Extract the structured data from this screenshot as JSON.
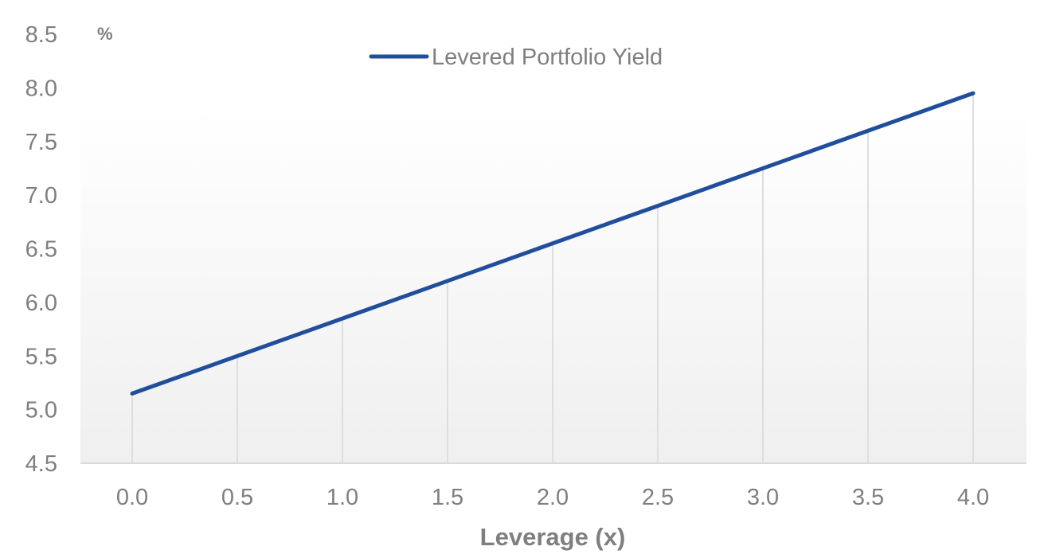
{
  "chart_data": {
    "type": "line",
    "title": "",
    "xlabel": "Leverage (x)",
    "ylabel": "%",
    "x": [
      0.0,
      0.5,
      1.0,
      1.5,
      2.0,
      2.5,
      3.0,
      3.5,
      4.0
    ],
    "x_tick_labels": [
      "0.0",
      "0.5",
      "1.0",
      "1.5",
      "2.0",
      "2.5",
      "3.0",
      "3.5",
      "4.0"
    ],
    "y_tick_labels": [
      "4.5",
      "5.0",
      "5.5",
      "6.0",
      "6.5",
      "7.0",
      "7.5",
      "8.0",
      "8.5"
    ],
    "ylim": [
      4.5,
      8.5
    ],
    "xlim": [
      -0.25,
      4.25
    ],
    "series": [
      {
        "name": "Levered Portfolio Yield",
        "color": "#1f4e9c",
        "values": [
          5.15,
          5.5,
          5.85,
          6.2,
          6.55,
          6.9,
          7.25,
          7.6,
          7.95
        ]
      }
    ],
    "legend_position": "top-center",
    "grid": "vertical drop lines at each point",
    "background": "light gray gradient under plot"
  }
}
